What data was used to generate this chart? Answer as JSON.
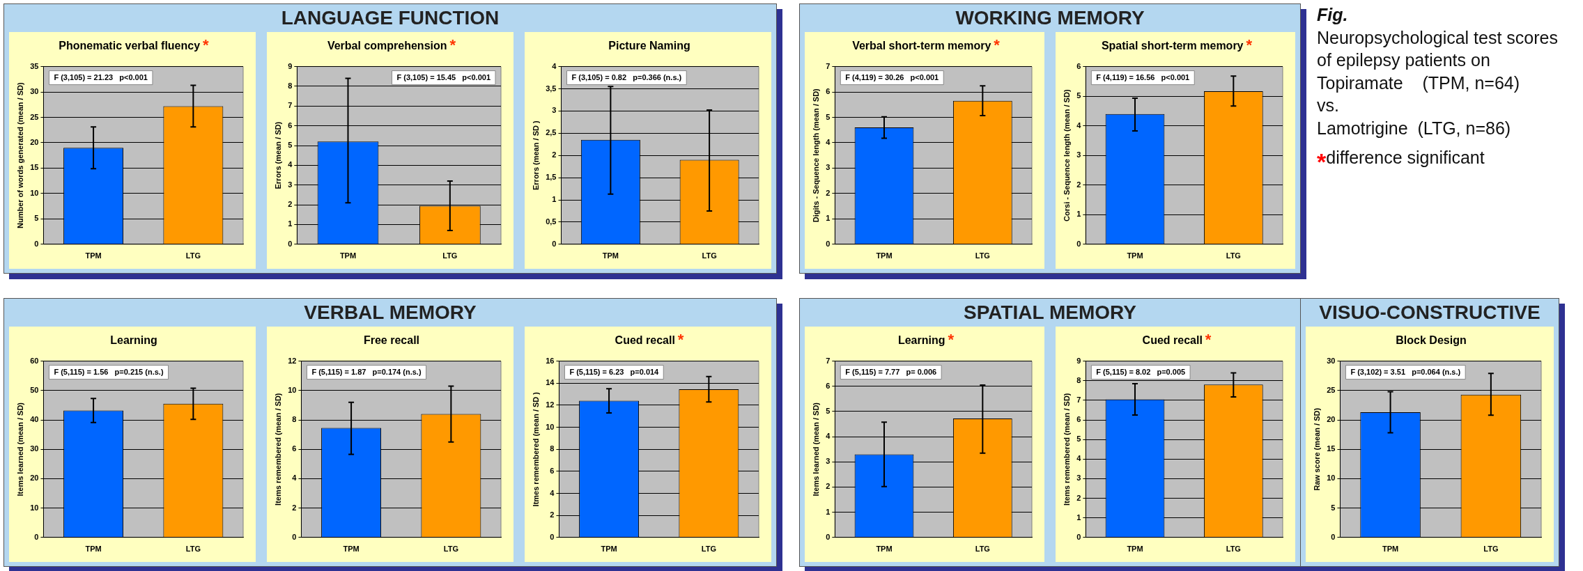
{
  "chart_data": [
    {
      "type": "other",
      "title": "LANGUAGE FUNCTION"
    },
    {
      "type": "bar",
      "title": "Phonematic verbal fluency",
      "ylabel": "Number of words generated (mean / SD)",
      "annotations": [
        "F (3,105) = 21.23   p<0.001",
        "*"
      ],
      "categories": [
        "TPM",
        "LTG"
      ],
      "values": [
        19.0,
        27.2
      ],
      "errors": [
        [
          14.9,
          23.1
        ],
        [
          23.1,
          31.3
        ]
      ],
      "colors": [
        "#0066ff",
        "#ff9900"
      ],
      "ylim": [
        0,
        35
      ],
      "yticks": [
        0,
        5,
        10,
        15,
        20,
        25,
        30,
        35
      ],
      "grid": "y",
      "legend": false
    },
    {
      "type": "bar",
      "title": "Verbal comprehension",
      "ylabel": "Errors (mean / SD)",
      "annotations": [
        "F (3,105) = 15.45   p<0.001",
        "*"
      ],
      "categories": [
        "TPM",
        "LTG"
      ],
      "values": [
        5.2,
        1.95
      ],
      "errors": [
        [
          2.1,
          8.4
        ],
        [
          0.7,
          3.2
        ]
      ],
      "colors": [
        "#0066ff",
        "#ff9900"
      ],
      "ylim": [
        0,
        9
      ],
      "yticks": [
        0,
        1,
        2,
        3,
        4,
        5,
        6,
        7,
        8,
        9
      ],
      "grid": "y",
      "legend": false
    },
    {
      "type": "bar",
      "title": "Picture Naming",
      "ylabel": "Errors (mean / SD )",
      "annotations": [
        "F (3,105) = 0.82   p=0.366 (n.s.)"
      ],
      "categories": [
        "TPM",
        "LTG"
      ],
      "values": [
        2.35,
        1.9
      ],
      "errors": [
        [
          1.13,
          3.55
        ],
        [
          0.75,
          3.02
        ]
      ],
      "colors": [
        "#0066ff",
        "#ff9900"
      ],
      "ylim": [
        0,
        4
      ],
      "yticks": [
        0,
        {
          "value": 0.5,
          "label": "0,5"
        },
        1,
        {
          "value": 1.5,
          "label": "1,5"
        },
        2,
        {
          "value": 2.5,
          "label": "2,5"
        },
        3,
        {
          "value": 3.5,
          "label": "3,5"
        },
        4
      ],
      "grid": "y",
      "legend": false
    },
    {
      "type": "other",
      "title": "WORKING MEMORY"
    },
    {
      "type": "bar",
      "title": "Verbal short-term memory",
      "ylabel": "Digits - Sequence length (mean / SD)",
      "annotations": [
        "F (4,119) = 30.26   p<0.001",
        "*"
      ],
      "categories": [
        "TPM",
        "LTG"
      ],
      "values": [
        4.6,
        5.65
      ],
      "errors": [
        [
          4.18,
          5.02
        ],
        [
          5.07,
          6.24
        ]
      ],
      "colors": [
        "#0066ff",
        "#ff9900"
      ],
      "ylim": [
        0,
        7
      ],
      "yticks": [
        0,
        1,
        2,
        3,
        4,
        5,
        6,
        7
      ],
      "grid": "y",
      "legend": false
    },
    {
      "type": "bar",
      "title": "Spatial short-term memory",
      "ylabel": "Corsi - Sequence length (mean / SD)",
      "annotations": [
        "F (4,119) = 16.56   p<0.001",
        "*"
      ],
      "categories": [
        "TPM",
        "LTG"
      ],
      "values": [
        4.4,
        5.17
      ],
      "errors": [
        [
          3.83,
          4.93
        ],
        [
          4.67,
          5.68
        ]
      ],
      "colors": [
        "#0066ff",
        "#ff9900"
      ],
      "ylim": [
        0,
        6
      ],
      "yticks": [
        0,
        1,
        2,
        3,
        4,
        5,
        6
      ],
      "grid": "y",
      "legend": false
    },
    {
      "type": "other",
      "title": "Fig.",
      "annotations": [
        "Neuropsychological test scores of epilepsy patients on",
        "Topiramate    (TPM, n=64)",
        "vs.",
        "Lamotrigine  (LTG, n=86)",
        "*",
        "difference significant"
      ]
    },
    {
      "type": "other",
      "title": "VERBAL MEMORY"
    },
    {
      "type": "bar",
      "title": "Learning",
      "ylabel": "Items learned (mean / SD)",
      "annotations": [
        "F (5,115) = 1.56   p=0.215 (n.s.)"
      ],
      "categories": [
        "TPM",
        "LTG"
      ],
      "values": [
        43.2,
        45.5
      ],
      "errors": [
        [
          39.1,
          47.3
        ],
        [
          40.2,
          50.8
        ]
      ],
      "colors": [
        "#0066ff",
        "#ff9900"
      ],
      "ylim": [
        0,
        60
      ],
      "yticks": [
        0,
        10,
        20,
        30,
        40,
        50,
        60
      ],
      "grid": "y",
      "legend": false
    },
    {
      "type": "bar",
      "title": "Free recall",
      "ylabel": "Items remembered (mean / SD)",
      "annotations": [
        "F (5,115) = 1.87   p=0.174 (n.s.)"
      ],
      "categories": [
        "TPM",
        "LTG"
      ],
      "values": [
        7.45,
        8.4
      ],
      "errors": [
        [
          5.65,
          9.2
        ],
        [
          6.5,
          10.3
        ]
      ],
      "colors": [
        "#0066ff",
        "#ff9900"
      ],
      "ylim": [
        0,
        12
      ],
      "yticks": [
        0,
        2,
        4,
        6,
        8,
        10,
        12
      ],
      "grid": "y",
      "legend": false
    },
    {
      "type": "bar",
      "title": "Cued recall",
      "ylabel": "Itmes remembered (mean / SD )",
      "annotations": [
        "F (5,115) = 6.23   p=0.014",
        "*"
      ],
      "categories": [
        "TPM",
        "LTG"
      ],
      "values": [
        12.4,
        13.45
      ],
      "errors": [
        [
          11.3,
          13.5
        ],
        [
          12.3,
          14.6
        ]
      ],
      "colors": [
        "#0066ff",
        "#ff9900"
      ],
      "ylim": [
        0,
        16
      ],
      "yticks": [
        0,
        2,
        4,
        6,
        8,
        10,
        12,
        14,
        16
      ],
      "grid": "y",
      "legend": false
    },
    {
      "type": "other",
      "title": "SPATIAL MEMORY"
    },
    {
      "type": "bar",
      "title": "Learning",
      "ylabel": "Items learned (mean / SD)",
      "annotations": [
        "F (5,115) = 7.77   p= 0.006",
        "*"
      ],
      "categories": [
        "TPM",
        "LTG"
      ],
      "values": [
        3.3,
        4.72
      ],
      "errors": [
        [
          2.02,
          4.58
        ],
        [
          3.35,
          6.05
        ]
      ],
      "colors": [
        "#0066ff",
        "#ff9900"
      ],
      "ylim": [
        0,
        7
      ],
      "yticks": [
        0,
        1,
        2,
        3,
        4,
        5,
        6,
        7
      ],
      "grid": "y",
      "legend": false
    },
    {
      "type": "bar",
      "title": "Cued recall",
      "ylabel": "Items remembered (mean / SD)",
      "annotations": [
        "F (5,115) = 8.02   p=0.005",
        "*"
      ],
      "categories": [
        "TPM",
        "LTG"
      ],
      "values": [
        7.05,
        7.8
      ],
      "errors": [
        [
          6.25,
          7.85
        ],
        [
          7.17,
          8.4
        ]
      ],
      "colors": [
        "#0066ff",
        "#ff9900"
      ],
      "ylim": [
        0,
        9
      ],
      "yticks": [
        0,
        1,
        2,
        3,
        4,
        5,
        6,
        7,
        8,
        9
      ],
      "grid": "y",
      "legend": false
    },
    {
      "type": "other",
      "title": "VISUO-CONSTRUCTIVE"
    },
    {
      "type": "bar",
      "title": "Block Design",
      "ylabel": "Raw score (mean / SD)",
      "annotations": [
        "F (3,102) = 3.51   p=0.064 (n.s.)"
      ],
      "categories": [
        "TPM",
        "LTG"
      ],
      "values": [
        21.3,
        24.3
      ],
      "errors": [
        [
          17.8,
          24.8
        ],
        [
          20.8,
          27.9
        ]
      ],
      "colors": [
        "#0066ff",
        "#ff9900"
      ],
      "ylim": [
        0,
        30
      ],
      "yticks": [
        0,
        5,
        10,
        15,
        20,
        25,
        30
      ],
      "grid": "y",
      "legend": false
    }
  ]
}
